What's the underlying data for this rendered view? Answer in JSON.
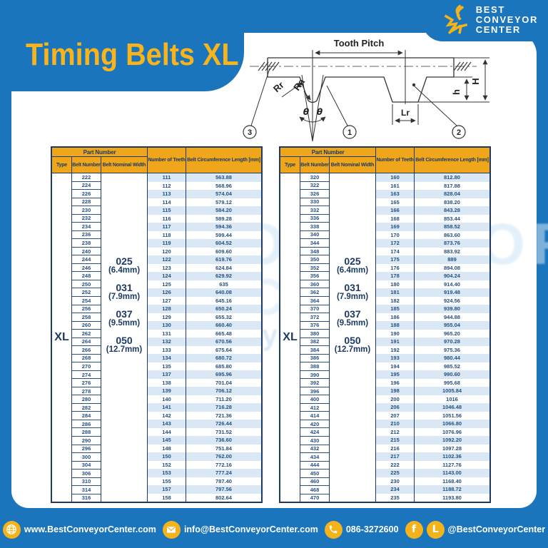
{
  "title": "Timing Belts XL",
  "logo": {
    "line1": "BEST",
    "line2": "CONVEYOR",
    "line3": "CENTER"
  },
  "diagram": {
    "tooth_pitch": "Tooth Pitch",
    "rr": "Rr",
    "ra": "Ra",
    "theta_left": "θ",
    "theta_right": "θ",
    "lr": "Lr",
    "tooth_height": "h",
    "belt_height": "H",
    "callout_1": "1",
    "callout_2": "2",
    "callout_3": "3"
  },
  "table_headers": {
    "part_number": "Part Number",
    "type": "Type",
    "belt_number": "Belt Number",
    "belt_nominal_width": "Belt Nominal Width",
    "number_of_teeth": "Number of Teeth",
    "belt_circumference": "Belt Circumference Length [mm]"
  },
  "type_value": "XL",
  "widths": [
    {
      "code": "025",
      "mm": "(6.4mm)"
    },
    {
      "code": "031",
      "mm": "(7.9mm)"
    },
    {
      "code": "037",
      "mm": "(9.5mm)"
    },
    {
      "code": "050",
      "mm": "(12.7mm)"
    }
  ],
  "left_table": {
    "rows": [
      [
        "222",
        "111",
        "563.88"
      ],
      [
        "224",
        "112",
        "568.96"
      ],
      [
        "226",
        "113",
        "574.04"
      ],
      [
        "228",
        "114",
        "579.12"
      ],
      [
        "230",
        "115",
        "584.20"
      ],
      [
        "232",
        "116",
        "589.28"
      ],
      [
        "234",
        "117",
        "594.36"
      ],
      [
        "236",
        "118",
        "599.44"
      ],
      [
        "238",
        "119",
        "604.52"
      ],
      [
        "240",
        "120",
        "609.60"
      ],
      [
        "244",
        "122",
        "619.76"
      ],
      [
        "246",
        "123",
        "624.84"
      ],
      [
        "248",
        "124",
        "629.92"
      ],
      [
        "250",
        "125",
        "635"
      ],
      [
        "252",
        "126",
        "640.08"
      ],
      [
        "254",
        "127",
        "645.16"
      ],
      [
        "256",
        "128",
        "650.24"
      ],
      [
        "258",
        "129",
        "655.32"
      ],
      [
        "260",
        "130",
        "660.40"
      ],
      [
        "262",
        "131",
        "665.48"
      ],
      [
        "264",
        "132",
        "670.56"
      ],
      [
        "266",
        "133",
        "675.64"
      ],
      [
        "268",
        "134",
        "680.72"
      ],
      [
        "270",
        "135",
        "685.80"
      ],
      [
        "274",
        "137",
        "695.96"
      ],
      [
        "276",
        "138",
        "701.04"
      ],
      [
        "278",
        "139",
        "706.12"
      ],
      [
        "280",
        "140",
        "711.20"
      ],
      [
        "282",
        "141",
        "716.28"
      ],
      [
        "284",
        "142",
        "721.36"
      ],
      [
        "286",
        "143",
        "726.44"
      ],
      [
        "288",
        "144",
        "731.52"
      ],
      [
        "290",
        "145",
        "736.60"
      ],
      [
        "296",
        "148",
        "751.84"
      ],
      [
        "300",
        "150",
        "762.00"
      ],
      [
        "304",
        "152",
        "772.16"
      ],
      [
        "306",
        "153",
        "777.24"
      ],
      [
        "310",
        "155",
        "787.40"
      ],
      [
        "314",
        "157",
        "797.56"
      ],
      [
        "316",
        "158",
        "802.64"
      ]
    ]
  },
  "right_table": {
    "rows": [
      [
        "320",
        "160",
        "812.80"
      ],
      [
        "322",
        "161",
        "817.88"
      ],
      [
        "326",
        "163",
        "828.04"
      ],
      [
        "330",
        "165",
        "838.20"
      ],
      [
        "332",
        "166",
        "843.28"
      ],
      [
        "336",
        "168",
        "853.44"
      ],
      [
        "338",
        "169",
        "858.52"
      ],
      [
        "340",
        "170",
        "863.60"
      ],
      [
        "344",
        "172",
        "873.76"
      ],
      [
        "348",
        "174",
        "883.92"
      ],
      [
        "350",
        "175",
        "889"
      ],
      [
        "352",
        "176",
        "894.08"
      ],
      [
        "356",
        "178",
        "904.24"
      ],
      [
        "360",
        "180",
        "914.40"
      ],
      [
        "362",
        "181",
        "919.48"
      ],
      [
        "364",
        "182",
        "924.56"
      ],
      [
        "370",
        "185",
        "939.80"
      ],
      [
        "372",
        "186",
        "944.88"
      ],
      [
        "376",
        "188",
        "955.04"
      ],
      [
        "380",
        "190",
        "965.20"
      ],
      [
        "382",
        "191",
        "970.28"
      ],
      [
        "384",
        "192",
        "975.36"
      ],
      [
        "386",
        "193",
        "980.44"
      ],
      [
        "388",
        "194",
        "985.52"
      ],
      [
        "390",
        "195",
        "990.60"
      ],
      [
        "392",
        "196",
        "995.68"
      ],
      [
        "396",
        "198",
        "1005.84"
      ],
      [
        "400",
        "200",
        "1016"
      ],
      [
        "412",
        "206",
        "1046.48"
      ],
      [
        "414",
        "207",
        "1051.56"
      ],
      [
        "420",
        "210",
        "1066.80"
      ],
      [
        "424",
        "212",
        "1076.96"
      ],
      [
        "430",
        "215",
        "1092.20"
      ],
      [
        "432",
        "216",
        "1097.28"
      ],
      [
        "434",
        "217",
        "1102.36"
      ],
      [
        "444",
        "222",
        "1127.76"
      ],
      [
        "450",
        "225",
        "1143.00"
      ],
      [
        "460",
        "230",
        "1168.40"
      ],
      [
        "468",
        "234",
        "1188.72"
      ],
      [
        "470",
        "235",
        "1193.80"
      ]
    ]
  },
  "watermark": {
    "word1": "CONVEYOR",
    "word2": "CENTER",
    "band": "BestConveyorCenter"
  },
  "footer": {
    "website": "www.BestConveyorCenter.com",
    "email": "info@BestConveyorCenter.com",
    "phone": "086-3272600",
    "social": "@BestConveyorCenter",
    "facebook_glyph": "f",
    "line_glyph": "L"
  },
  "colors": {
    "blue": "#1b75bc",
    "yellow": "#f9b41c",
    "header_amber": "#efa61b",
    "navy": "#1c3a63",
    "stripe": "#d9e8f4",
    "cell_text": "#27507f",
    "icon_yellow": "#f5b31b"
  }
}
